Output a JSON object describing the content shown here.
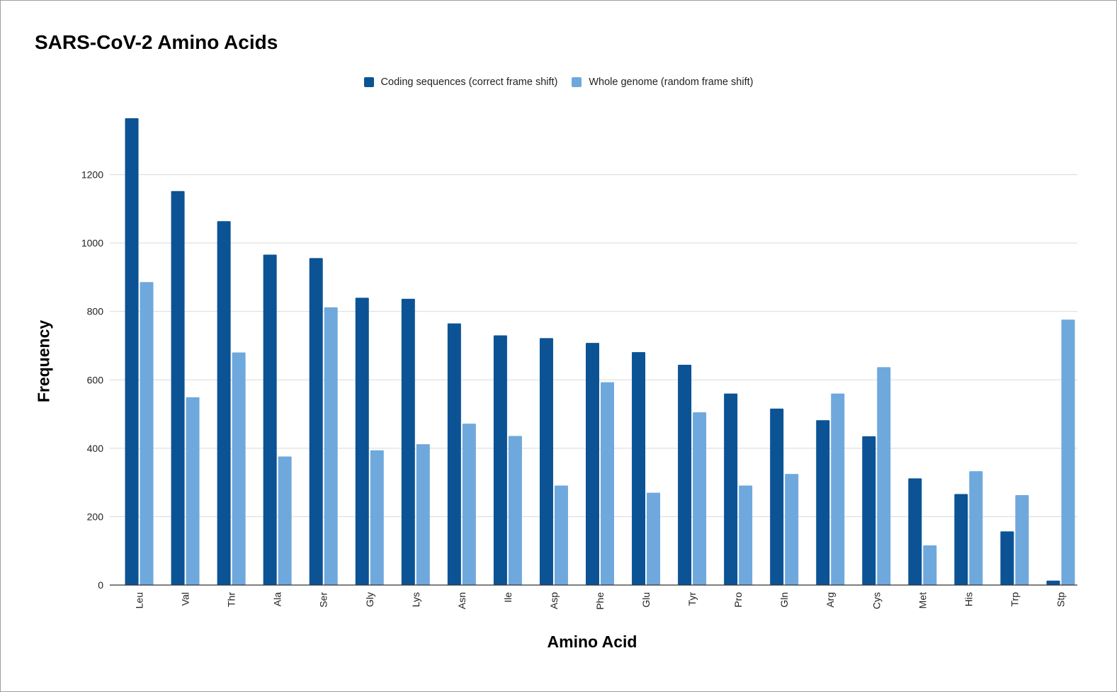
{
  "chart_data": {
    "type": "bar",
    "title": "SARS-CoV-2 Amino Acids",
    "xlabel": "Amino Acid",
    "ylabel": "Frequency",
    "ylim": [
      0,
      1400
    ],
    "yticks": [
      0,
      200,
      400,
      600,
      800,
      1000,
      1200
    ],
    "grid": true,
    "legend_position": "top",
    "categories": [
      "Leu",
      "Val",
      "Thr",
      "Ala",
      "Ser",
      "Gly",
      "Lys",
      "Asn",
      "Ile",
      "Asp",
      "Phe",
      "Glu",
      "Tyr",
      "Pro",
      "Gln",
      "Arg",
      "Cys",
      "Met",
      "His",
      "Trp",
      "Stp"
    ],
    "series": [
      {
        "name": "Coding sequences (correct frame shift)",
        "color": "#0b5394",
        "values": [
          1365,
          1152,
          1064,
          966,
          956,
          840,
          837,
          765,
          730,
          722,
          708,
          681,
          644,
          560,
          516,
          482,
          435,
          312,
          266,
          157,
          13
        ]
      },
      {
        "name": "Whole genome (random frame shift)",
        "color": "#6fa8dc",
        "values": [
          886,
          549,
          680,
          376,
          812,
          394,
          412,
          472,
          436,
          291,
          593,
          270,
          505,
          291,
          325,
          560,
          637,
          116,
          333,
          263,
          776
        ]
      }
    ]
  }
}
